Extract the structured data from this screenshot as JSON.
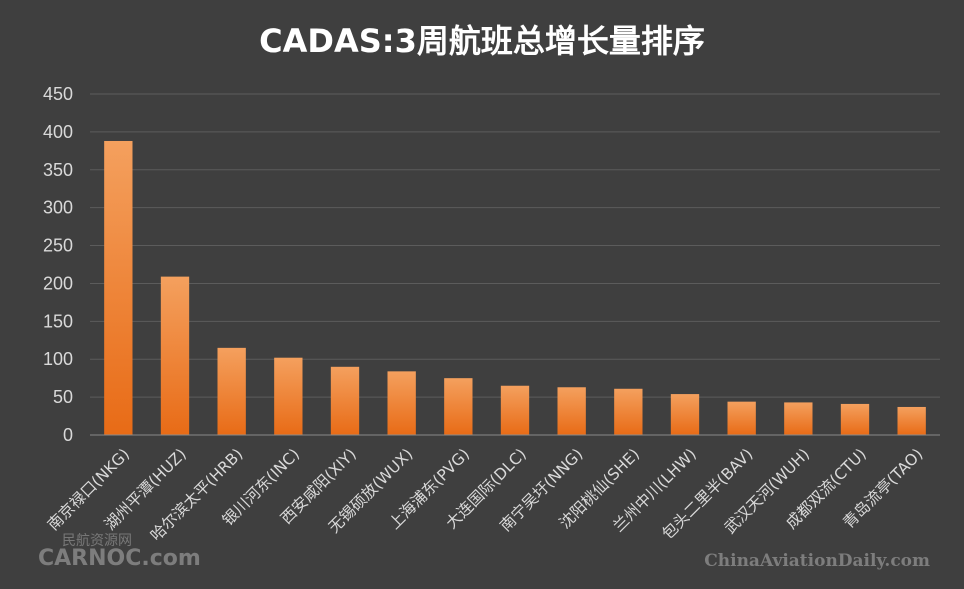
{
  "chart_data": {
    "type": "bar",
    "title": "CADAS:3周航班总增长量排序",
    "xlabel": "",
    "ylabel": "",
    "ylim": [
      0,
      450
    ],
    "yticks": [
      0,
      50,
      100,
      150,
      200,
      250,
      300,
      350,
      400,
      450
    ],
    "grid": true,
    "legend": "none",
    "bar_color_top": "#f4a05e",
    "bar_color_bottom": "#e86b16",
    "categories": [
      "南京禄口(NKG)",
      "湖州平潭(HUZ)",
      "哈尔滨太平(HRB)",
      "银川河东(INC)",
      "西安咸阳(XIY)",
      "无锡硕放(WUX)",
      "上海浦东(PVG)",
      "大连国际(DLC)",
      "南宁吴圩(NNG)",
      "沈阳桃仙(SHE)",
      "兰州中川(LHW)",
      "包头二里半(BAV)",
      "武汉天河(WUH)",
      "成都双流(CTU)",
      "青岛流亭(TAO)"
    ],
    "values": [
      388,
      209,
      115,
      102,
      90,
      84,
      75,
      65,
      63,
      61,
      54,
      44,
      43,
      41,
      37
    ]
  },
  "watermarks": {
    "left_brand": "CARNOC.com",
    "left_cn": "民航资源网",
    "right_brand": "ChinaAviationDaily.com"
  }
}
